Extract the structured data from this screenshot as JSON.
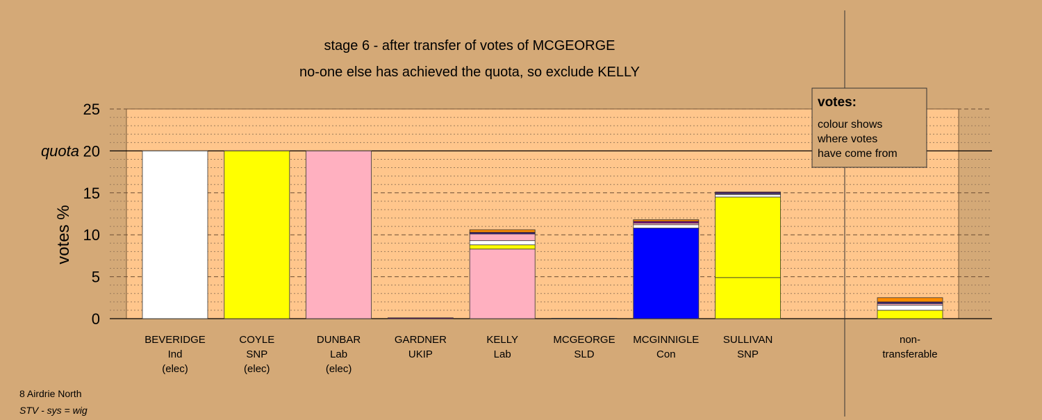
{
  "chart_data": {
    "type": "bar",
    "title": "stage 6 - after transfer of votes of MCGEORGE",
    "subtitle": "no-one else has achieved the quota, so exclude KELLY",
    "ylabel": "votes %",
    "ylim": [
      0,
      25
    ],
    "yticks": [
      0,
      5,
      10,
      15,
      20,
      25
    ],
    "quota": 20,
    "quota_label": "quota",
    "stacked": true,
    "candidates": [
      {
        "name": "BEVERIDGE",
        "party": "Ind",
        "status": "(elec)",
        "segments": [
          {
            "value": 20,
            "color": "#FFFFFF"
          }
        ]
      },
      {
        "name": "COYLE",
        "party": "SNP",
        "status": "(elec)",
        "segments": [
          {
            "value": 20,
            "color": "#FFFF00"
          }
        ]
      },
      {
        "name": "DUNBAR",
        "party": "Lab",
        "status": "(elec)",
        "segments": [
          {
            "value": 20,
            "color": "#FFB0C0"
          }
        ]
      },
      {
        "name": "GARDNER",
        "party": "UKIP",
        "status": "",
        "segments": [
          {
            "value": 0.1,
            "color": "#800080"
          }
        ]
      },
      {
        "name": "KELLY",
        "party": "Lab",
        "status": "",
        "segments": [
          {
            "value": 8.3,
            "color": "#FFB0C0"
          },
          {
            "value": 0.5,
            "color": "#FFFF00"
          },
          {
            "value": 0.5,
            "color": "#FFFFFF"
          },
          {
            "value": 0.8,
            "color": "#FFB0C0"
          },
          {
            "value": 0.1,
            "color": "#0000FF"
          },
          {
            "value": 0.1,
            "color": "#800080"
          },
          {
            "value": 0.3,
            "color": "#FF8C00"
          }
        ]
      },
      {
        "name": "MCGEORGE",
        "party": "SLD",
        "status": "",
        "segments": [
          {
            "value": 0.05,
            "color": "#FF8C00"
          }
        ]
      },
      {
        "name": "MCGINNIGLE",
        "party": "Con",
        "status": "",
        "segments": [
          {
            "value": 10.8,
            "color": "#0000FF"
          },
          {
            "value": 0.4,
            "color": "#FFFFFF"
          },
          {
            "value": 0.2,
            "color": "#FFB0C0"
          },
          {
            "value": 0.2,
            "color": "#800080"
          },
          {
            "value": 0.2,
            "color": "#FF8C00"
          }
        ]
      },
      {
        "name": "SULLIVAN",
        "party": "SNP",
        "status": "",
        "segments": [
          {
            "value": 4.9,
            "color": "#FFFF00"
          },
          {
            "value": 9.6,
            "color": "#FFFF00"
          },
          {
            "value": 0.3,
            "color": "#FFFFFF"
          },
          {
            "value": 0.1,
            "color": "#FFB0C0"
          },
          {
            "value": 0.1,
            "color": "#0000FF"
          },
          {
            "value": 0.1,
            "color": "#800080"
          }
        ]
      }
    ],
    "non_transferable": {
      "label_line1": "non-",
      "label_line2": "transferable",
      "segments": [
        {
          "value": 1.0,
          "color": "#FFFF00"
        },
        {
          "value": 0.6,
          "color": "#FFFFFF"
        },
        {
          "value": 0.2,
          "color": "#FFB0C0"
        },
        {
          "value": 0.1,
          "color": "#0000FF"
        },
        {
          "value": 0.1,
          "color": "#800080"
        },
        {
          "value": 0.5,
          "color": "#FF8C00"
        }
      ]
    }
  },
  "legend": {
    "title": "votes:",
    "line1": "colour shows",
    "line2": "where votes",
    "line3": "have come from"
  },
  "footer": {
    "ward": "8 Airdrie North",
    "system": "STV - sys = wig"
  },
  "colors": {
    "background": "#D4A977",
    "plot_area": "#FFC68C"
  }
}
